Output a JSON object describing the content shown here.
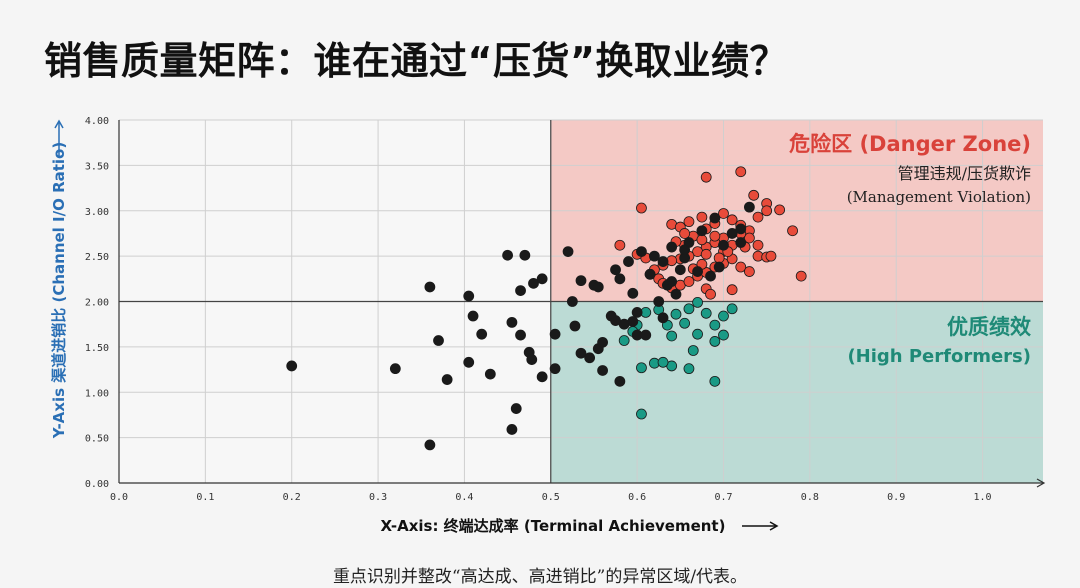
{
  "title": "销售质量矩阵：谁在通过“压货”换取业绩？",
  "caption": "重点识别并整改“高达成、高进销比”的异常区域/代表。",
  "chart_data": {
    "type": "scatter",
    "xlabel": "X-Axis: 终端达成率 (Terminal Achievement)",
    "ylabel": "Y-Axis 渠道进销比 (Channel I/O Ratio)",
    "xlim": [
      0.0,
      1.07
    ],
    "ylim": [
      0.0,
      4.0
    ],
    "x_ticks": [
      "0.0",
      "0.1",
      "0.2",
      "0.3",
      "0.4",
      "0.5",
      "0.6",
      "0.7",
      "0.8",
      "0.9",
      "1.0"
    ],
    "y_ticks": [
      "0.00",
      "0.50",
      "1.00",
      "1.50",
      "2.00",
      "2.50",
      "3.00",
      "3.50",
      "4.00"
    ],
    "grid": true,
    "thresholds": {
      "x": 0.5,
      "y": 2.0
    },
    "zones": {
      "danger": {
        "title": "危险区 (Danger Zone)",
        "subtitle": "管理违规/压货欺诈",
        "subtitle_en": "(Management Violation)",
        "fill": "#f4c9c5",
        "text_color": "#d9423a"
      },
      "high": {
        "title": "优质绩效",
        "subtitle": "(High Performers)",
        "fill": "#bcdbd5",
        "text_color": "#1f8a77"
      }
    },
    "colors": {
      "danger": "#e84b3a",
      "high": "#1a9a85",
      "normal": "#1a1a1a"
    },
    "series": [
      {
        "category": "danger",
        "points": [
          [
            0.605,
            3.03
          ],
          [
            0.58,
            2.62
          ],
          [
            0.68,
            3.37
          ],
          [
            0.72,
            3.43
          ],
          [
            0.735,
            3.17
          ],
          [
            0.75,
            3.08
          ],
          [
            0.765,
            3.01
          ],
          [
            0.78,
            2.78
          ],
          [
            0.79,
            2.28
          ],
          [
            0.64,
            2.85
          ],
          [
            0.65,
            2.82
          ],
          [
            0.66,
            2.88
          ],
          [
            0.665,
            2.72
          ],
          [
            0.675,
            2.93
          ],
          [
            0.68,
            2.8
          ],
          [
            0.69,
            2.86
          ],
          [
            0.7,
            2.97
          ],
          [
            0.71,
            2.9
          ],
          [
            0.72,
            2.84
          ],
          [
            0.73,
            2.78
          ],
          [
            0.74,
            2.93
          ],
          [
            0.75,
            3.0
          ],
          [
            0.74,
            2.62
          ],
          [
            0.73,
            2.7
          ],
          [
            0.7,
            2.7
          ],
          [
            0.69,
            2.65
          ],
          [
            0.68,
            2.6
          ],
          [
            0.67,
            2.55
          ],
          [
            0.66,
            2.5
          ],
          [
            0.65,
            2.47
          ],
          [
            0.64,
            2.45
          ],
          [
            0.63,
            2.4
          ],
          [
            0.62,
            2.35
          ],
          [
            0.61,
            2.48
          ],
          [
            0.6,
            2.52
          ],
          [
            0.615,
            2.3
          ],
          [
            0.625,
            2.25
          ],
          [
            0.63,
            2.2
          ],
          [
            0.64,
            2.15
          ],
          [
            0.65,
            2.18
          ],
          [
            0.66,
            2.22
          ],
          [
            0.67,
            2.28
          ],
          [
            0.68,
            2.32
          ],
          [
            0.69,
            2.38
          ],
          [
            0.7,
            2.42
          ],
          [
            0.71,
            2.47
          ],
          [
            0.72,
            2.38
          ],
          [
            0.73,
            2.33
          ],
          [
            0.74,
            2.5
          ],
          [
            0.75,
            2.49
          ],
          [
            0.755,
            2.5
          ],
          [
            0.68,
            2.14
          ],
          [
            0.685,
            2.08
          ],
          [
            0.71,
            2.13
          ],
          [
            0.7,
            2.55
          ],
          [
            0.695,
            2.48
          ],
          [
            0.675,
            2.41
          ],
          [
            0.665,
            2.36
          ],
          [
            0.655,
            2.62
          ],
          [
            0.645,
            2.66
          ],
          [
            0.72,
            2.75
          ],
          [
            0.725,
            2.6
          ],
          [
            0.71,
            2.62
          ],
          [
            0.69,
            2.72
          ],
          [
            0.675,
            2.68
          ],
          [
            0.655,
            2.75
          ],
          [
            0.68,
            2.52
          ],
          [
            0.705,
            2.55
          ]
        ]
      },
      {
        "category": "high",
        "points": [
          [
            0.605,
            0.76
          ],
          [
            0.69,
            1.12
          ],
          [
            0.62,
            1.32
          ],
          [
            0.64,
            1.29
          ],
          [
            0.66,
            1.26
          ],
          [
            0.605,
            1.27
          ],
          [
            0.63,
            1.33
          ],
          [
            0.665,
            1.46
          ],
          [
            0.69,
            1.56
          ],
          [
            0.7,
            1.63
          ],
          [
            0.69,
            1.74
          ],
          [
            0.68,
            1.87
          ],
          [
            0.7,
            1.84
          ],
          [
            0.71,
            1.92
          ],
          [
            0.655,
            1.76
          ],
          [
            0.67,
            1.64
          ],
          [
            0.64,
            1.62
          ],
          [
            0.6,
            1.74
          ],
          [
            0.585,
            1.57
          ],
          [
            0.61,
            1.88
          ],
          [
            0.625,
            1.91
          ],
          [
            0.645,
            1.86
          ],
          [
            0.67,
            1.99
          ],
          [
            0.595,
            1.67
          ],
          [
            0.635,
            1.74
          ],
          [
            0.66,
            1.92
          ]
        ]
      },
      {
        "category": "normal",
        "points": [
          [
            0.2,
            1.29
          ],
          [
            0.32,
            1.26
          ],
          [
            0.36,
            0.42
          ],
          [
            0.36,
            2.16
          ],
          [
            0.37,
            1.57
          ],
          [
            0.38,
            1.14
          ],
          [
            0.405,
            2.06
          ],
          [
            0.405,
            1.33
          ],
          [
            0.41,
            1.84
          ],
          [
            0.42,
            1.64
          ],
          [
            0.43,
            1.2
          ],
          [
            0.45,
            2.51
          ],
          [
            0.455,
            1.77
          ],
          [
            0.455,
            0.59
          ],
          [
            0.46,
            0.82
          ],
          [
            0.465,
            1.63
          ],
          [
            0.465,
            2.12
          ],
          [
            0.47,
            2.51
          ],
          [
            0.475,
            1.44
          ],
          [
            0.478,
            1.36
          ],
          [
            0.48,
            2.2
          ],
          [
            0.49,
            2.25
          ],
          [
            0.49,
            1.17
          ],
          [
            0.505,
            1.64
          ],
          [
            0.505,
            1.26
          ],
          [
            0.52,
            2.55
          ],
          [
            0.525,
            2.0
          ],
          [
            0.528,
            1.73
          ],
          [
            0.535,
            2.23
          ],
          [
            0.535,
            1.43
          ],
          [
            0.545,
            1.38
          ],
          [
            0.55,
            2.18
          ],
          [
            0.555,
            1.48
          ],
          [
            0.56,
            1.55
          ],
          [
            0.56,
            1.24
          ],
          [
            0.57,
            1.84
          ],
          [
            0.575,
            2.35
          ],
          [
            0.58,
            1.12
          ],
          [
            0.585,
            1.75
          ],
          [
            0.59,
            2.44
          ],
          [
            0.595,
            2.09
          ],
          [
            0.6,
            1.88
          ],
          [
            0.605,
            2.55
          ],
          [
            0.61,
            1.63
          ],
          [
            0.615,
            2.3
          ],
          [
            0.62,
            2.5
          ],
          [
            0.625,
            2.0
          ],
          [
            0.63,
            1.82
          ],
          [
            0.635,
            2.18
          ],
          [
            0.64,
            2.6
          ],
          [
            0.645,
            2.08
          ],
          [
            0.65,
            2.35
          ],
          [
            0.655,
            2.48
          ],
          [
            0.66,
            2.65
          ],
          [
            0.67,
            2.33
          ],
          [
            0.675,
            2.78
          ],
          [
            0.685,
            2.28
          ],
          [
            0.69,
            2.92
          ],
          [
            0.7,
            2.62
          ],
          [
            0.71,
            2.75
          ],
          [
            0.72,
            2.8
          ],
          [
            0.73,
            3.04
          ],
          [
            0.58,
            2.25
          ],
          [
            0.595,
            1.78
          ],
          [
            0.6,
            1.63
          ],
          [
            0.575,
            1.79
          ],
          [
            0.555,
            2.16
          ],
          [
            0.63,
            2.44
          ],
          [
            0.655,
            2.57
          ],
          [
            0.695,
            2.38
          ],
          [
            0.64,
            2.22
          ],
          [
            0.72,
            2.65
          ]
        ]
      }
    ]
  }
}
